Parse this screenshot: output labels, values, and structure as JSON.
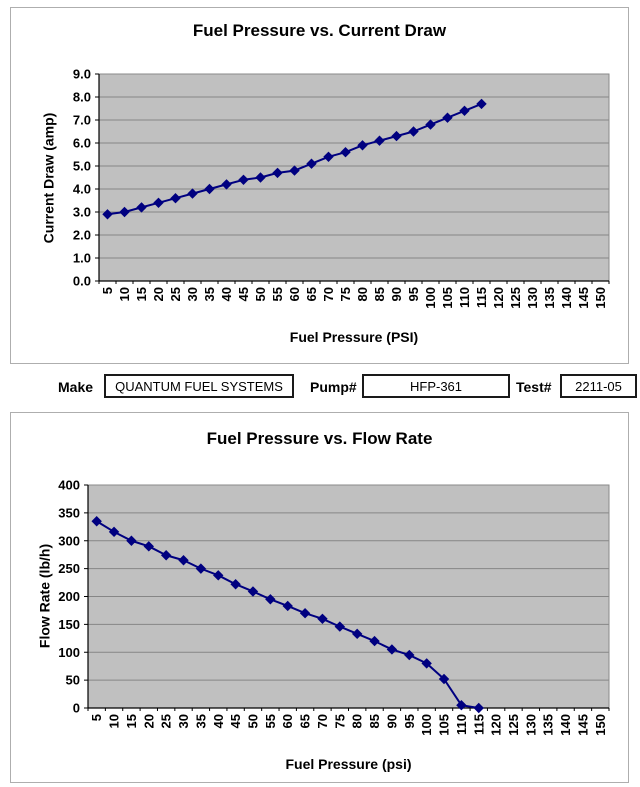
{
  "form": {
    "make": {
      "label": "Make",
      "value": "QUANTUM FUEL SYSTEMS"
    },
    "pump": {
      "label": "Pump#",
      "value": "HFP-361"
    },
    "test": {
      "label": "Test#",
      "value": "2211-05"
    }
  },
  "chart_data": [
    {
      "type": "line",
      "title": "Fuel Pressure vs. Current Draw",
      "xlabel": "Fuel Pressure (PSI)",
      "ylabel": "Current Draw (amp)",
      "categories": [
        5,
        10,
        15,
        20,
        25,
        30,
        35,
        40,
        45,
        50,
        55,
        60,
        65,
        70,
        75,
        80,
        85,
        90,
        95,
        100,
        105,
        110,
        115,
        120,
        125,
        130,
        135,
        140,
        145,
        150
      ],
      "values": [
        2.9,
        3.0,
        3.2,
        3.4,
        3.6,
        3.8,
        4.0,
        4.2,
        4.4,
        4.5,
        4.7,
        4.8,
        5.1,
        5.4,
        5.6,
        5.9,
        6.1,
        6.3,
        6.5,
        6.8,
        7.1,
        7.4,
        7.7
      ],
      "ylim": [
        0,
        9
      ],
      "ytick_step": 1,
      "ytick_decimals": 1,
      "grid": true,
      "legend": "none",
      "marker": "diamond",
      "series_color": "#000080",
      "plot_bg_color": "#c0c0c0",
      "gridline_color": "#868686"
    },
    {
      "type": "line",
      "title": "Fuel Pressure vs. Flow Rate",
      "xlabel": "Fuel Pressure (psi)",
      "ylabel": "Flow Rate (lb/h)",
      "categories": [
        5,
        10,
        15,
        20,
        25,
        30,
        35,
        40,
        45,
        50,
        55,
        60,
        65,
        70,
        75,
        80,
        85,
        90,
        95,
        100,
        105,
        110,
        115,
        120,
        125,
        130,
        135,
        140,
        145,
        150
      ],
      "values": [
        335,
        316,
        300,
        290,
        274,
        265,
        250,
        238,
        222,
        209,
        195,
        183,
        170,
        160,
        146,
        133,
        120,
        105,
        95,
        80,
        52,
        5,
        0
      ],
      "ylim": [
        0,
        400
      ],
      "ytick_step": 50,
      "ytick_decimals": 0,
      "grid": true,
      "legend": "none",
      "marker": "diamond",
      "series_color": "#000080",
      "plot_bg_color": "#c0c0c0",
      "gridline_color": "#868686"
    }
  ]
}
